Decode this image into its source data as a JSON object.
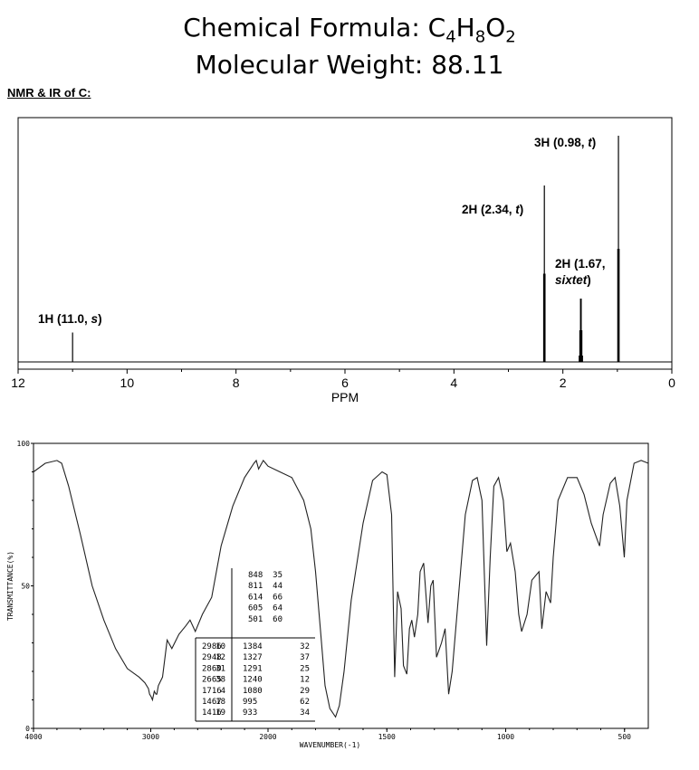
{
  "header": {
    "formula_prefix": "Chemical Formula: C",
    "formula_n1": "4",
    "formula_h": "H",
    "formula_n2": "8",
    "formula_o": "O",
    "formula_n3": "2",
    "mw": "Molecular Weight: 88.11",
    "section": "NMR & IR of C:"
  },
  "chart_data": [
    {
      "type": "line",
      "xlabel": "PPM",
      "xlim": [
        12,
        0
      ],
      "x_reversed": true,
      "xticks": [
        "12",
        "10",
        "8",
        "6",
        "4",
        "2",
        "0"
      ],
      "peaks": [
        {
          "ppm": 11.0,
          "height": 0.13,
          "multiplicity": "s",
          "label": "1H (11.0, ",
          "mult_label": "s",
          "label_end": ")"
        },
        {
          "ppm": 2.34,
          "height": 0.78,
          "multiplicity": "t",
          "label": "2H (2.34, ",
          "mult_label": "t",
          "label_end": ")"
        },
        {
          "ppm": 1.67,
          "height": 0.28,
          "multiplicity": "sixtet",
          "label": "2H (1.67,",
          "mult_label": "sixtet",
          "label_end": ")"
        },
        {
          "ppm": 0.98,
          "height": 1.0,
          "multiplicity": "t",
          "label": "3H (0.98, ",
          "mult_label": "t",
          "label_end": ")"
        }
      ]
    },
    {
      "type": "line",
      "xlabel": "WAVENUMBER(-1)",
      "ylabel": "TRANSMITTANCE(%)",
      "xlim": [
        4000,
        400
      ],
      "ylim": [
        0,
        100
      ],
      "xticks": [
        "4000",
        "3000",
        "2000",
        "1500",
        "1000",
        "500"
      ],
      "yticks": [
        "0",
        "50",
        "100"
      ],
      "spectrum": [
        [
          4000,
          90
        ],
        [
          3900,
          93
        ],
        [
          3800,
          94
        ],
        [
          3760,
          93
        ],
        [
          3700,
          85
        ],
        [
          3600,
          68
        ],
        [
          3500,
          50
        ],
        [
          3400,
          38
        ],
        [
          3300,
          28
        ],
        [
          3200,
          21
        ],
        [
          3100,
          18
        ],
        [
          3050,
          16
        ],
        [
          3020,
          14
        ],
        [
          3010,
          12
        ],
        [
          2995,
          11
        ],
        [
          2985,
          10
        ],
        [
          2970,
          13
        ],
        [
          2955,
          12
        ],
        [
          2948,
          12
        ],
        [
          2935,
          15
        ],
        [
          2900,
          18
        ],
        [
          2860,
          31
        ],
        [
          2820,
          28
        ],
        [
          2760,
          33
        ],
        [
          2700,
          36
        ],
        [
          2665,
          38
        ],
        [
          2620,
          34
        ],
        [
          2560,
          40
        ],
        [
          2480,
          46
        ],
        [
          2400,
          64
        ],
        [
          2300,
          78
        ],
        [
          2200,
          88
        ],
        [
          2120,
          93
        ],
        [
          2100,
          94
        ],
        [
          2080,
          91
        ],
        [
          2040,
          94
        ],
        [
          2020,
          93
        ],
        [
          2000,
          92
        ],
        [
          1950,
          90
        ],
        [
          1900,
          88
        ],
        [
          1850,
          80
        ],
        [
          1820,
          70
        ],
        [
          1800,
          55
        ],
        [
          1780,
          35
        ],
        [
          1760,
          15
        ],
        [
          1740,
          7
        ],
        [
          1716,
          4
        ],
        [
          1700,
          8
        ],
        [
          1680,
          20
        ],
        [
          1650,
          45
        ],
        [
          1600,
          72
        ],
        [
          1560,
          87
        ],
        [
          1520,
          90
        ],
        [
          1500,
          89
        ],
        [
          1480,
          75
        ],
        [
          1467,
          18
        ],
        [
          1455,
          48
        ],
        [
          1440,
          42
        ],
        [
          1430,
          22
        ],
        [
          1416,
          19
        ],
        [
          1405,
          35
        ],
        [
          1395,
          38
        ],
        [
          1384,
          32
        ],
        [
          1370,
          40
        ],
        [
          1360,
          55
        ],
        [
          1345,
          58
        ],
        [
          1327,
          37
        ],
        [
          1315,
          50
        ],
        [
          1305,
          52
        ],
        [
          1291,
          25
        ],
        [
          1270,
          30
        ],
        [
          1255,
          35
        ],
        [
          1240,
          12
        ],
        [
          1225,
          20
        ],
        [
          1200,
          45
        ],
        [
          1170,
          75
        ],
        [
          1140,
          87
        ],
        [
          1120,
          88
        ],
        [
          1100,
          80
        ],
        [
          1080,
          29
        ],
        [
          1065,
          60
        ],
        [
          1050,
          85
        ],
        [
          1030,
          88
        ],
        [
          1010,
          80
        ],
        [
          995,
          62
        ],
        [
          980,
          65
        ],
        [
          960,
          55
        ],
        [
          945,
          40
        ],
        [
          933,
          34
        ],
        [
          910,
          40
        ],
        [
          890,
          52
        ],
        [
          860,
          55
        ],
        [
          848,
          35
        ],
        [
          830,
          48
        ],
        [
          811,
          44
        ],
        [
          800,
          60
        ],
        [
          780,
          80
        ],
        [
          740,
          88
        ],
        [
          700,
          88
        ],
        [
          670,
          82
        ],
        [
          640,
          72
        ],
        [
          614,
          66
        ],
        [
          605,
          64
        ],
        [
          590,
          75
        ],
        [
          560,
          86
        ],
        [
          540,
          88
        ],
        [
          520,
          78
        ],
        [
          501,
          60
        ],
        [
          490,
          80
        ],
        [
          460,
          93
        ],
        [
          430,
          94
        ],
        [
          400,
          93
        ]
      ],
      "peak_table_right_top": [
        [
          "848",
          "35"
        ],
        [
          "811",
          "44"
        ],
        [
          "614",
          "66"
        ],
        [
          "605",
          "64"
        ],
        [
          "501",
          "60"
        ]
      ],
      "peak_table": [
        [
          "2986",
          "10",
          "1384",
          "32"
        ],
        [
          "2948",
          "12",
          "1327",
          "37"
        ],
        [
          "2860",
          "31",
          "1291",
          "25"
        ],
        [
          "2665",
          "38",
          "1240",
          "12"
        ],
        [
          "1716",
          "4",
          "1080",
          "29"
        ],
        [
          "1467",
          "18",
          "995",
          "62"
        ],
        [
          "1416",
          "19",
          "933",
          "34"
        ]
      ]
    }
  ]
}
